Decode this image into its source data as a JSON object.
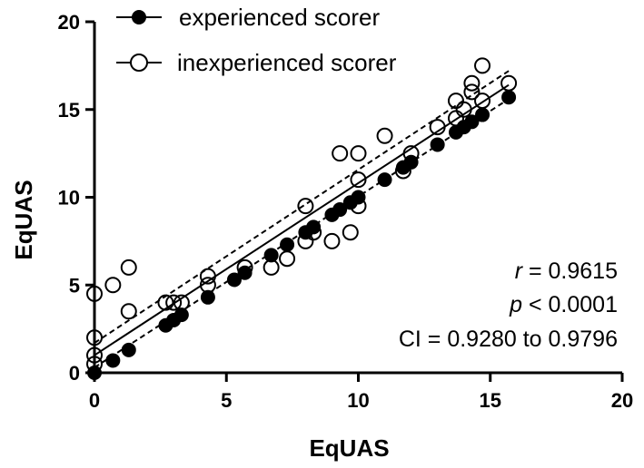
{
  "chart_data": {
    "type": "scatter",
    "xlabel": "EqUAS",
    "ylabel": "EqUAS",
    "xlim": [
      0,
      20
    ],
    "ylim": [
      0,
      20
    ],
    "xticks": [
      0,
      5,
      10,
      15,
      20
    ],
    "yticks": [
      0,
      5,
      10,
      15,
      20
    ],
    "grid": false,
    "legend_position": "top-left",
    "series": [
      {
        "name": "experienced scorer",
        "marker": "filled-circle",
        "color": "#000000",
        "points": [
          [
            0,
            0
          ],
          [
            0.7,
            0.7
          ],
          [
            1.3,
            1.3
          ],
          [
            2.7,
            2.7
          ],
          [
            3.0,
            3.0
          ],
          [
            3.3,
            3.3
          ],
          [
            4.3,
            4.3
          ],
          [
            5.3,
            5.3
          ],
          [
            5.7,
            5.7
          ],
          [
            6.7,
            6.7
          ],
          [
            7.3,
            7.3
          ],
          [
            8.0,
            8.0
          ],
          [
            8.3,
            8.3
          ],
          [
            9.0,
            9.0
          ],
          [
            9.3,
            9.3
          ],
          [
            9.7,
            9.7
          ],
          [
            10.0,
            10.0
          ],
          [
            11.0,
            11.0
          ],
          [
            11.7,
            11.7
          ],
          [
            12.0,
            12.0
          ],
          [
            13.0,
            13.0
          ],
          [
            13.7,
            13.7
          ],
          [
            14.0,
            14.0
          ],
          [
            14.3,
            14.3
          ],
          [
            14.7,
            14.7
          ],
          [
            15.7,
            15.7
          ]
        ]
      },
      {
        "name": "inexperienced scorer",
        "marker": "open-circle",
        "color": "#000000",
        "points": [
          [
            0,
            4.5
          ],
          [
            0,
            2.0
          ],
          [
            0,
            1.0
          ],
          [
            0,
            0.5
          ],
          [
            0.7,
            5.0
          ],
          [
            1.3,
            6.0
          ],
          [
            1.3,
            3.5
          ],
          [
            2.7,
            4.0
          ],
          [
            3.0,
            4.0
          ],
          [
            3.3,
            4.0
          ],
          [
            4.3,
            5.5
          ],
          [
            4.3,
            5.0
          ],
          [
            5.7,
            6.0
          ],
          [
            6.7,
            6.0
          ],
          [
            7.3,
            6.5
          ],
          [
            8.0,
            9.5
          ],
          [
            8.0,
            7.5
          ],
          [
            8.3,
            8.0
          ],
          [
            9.0,
            7.5
          ],
          [
            9.3,
            12.5
          ],
          [
            9.7,
            8.0
          ],
          [
            10.0,
            12.5
          ],
          [
            10.0,
            11.0
          ],
          [
            10.0,
            9.5
          ],
          [
            11.0,
            13.5
          ],
          [
            11.7,
            11.5
          ],
          [
            12.0,
            12.5
          ],
          [
            13.0,
            14.0
          ],
          [
            13.7,
            15.5
          ],
          [
            13.7,
            14.5
          ],
          [
            14.0,
            15.0
          ],
          [
            14.3,
            16.5
          ],
          [
            14.3,
            16.0
          ],
          [
            14.7,
            17.5
          ],
          [
            14.7,
            15.5
          ],
          [
            15.7,
            16.5
          ]
        ]
      }
    ],
    "regression": {
      "fit_line": {
        "x": [
          0,
          15.7
        ],
        "y": [
          1.0,
          16.4
        ]
      },
      "ci_upper": {
        "x": [
          0,
          15.7
        ],
        "y": [
          1.7,
          17.2
        ]
      },
      "ci_lower": {
        "x": [
          0,
          15.7
        ],
        "y": [
          0.3,
          15.6
        ]
      }
    },
    "annotations": [
      {
        "italic": "r",
        "rest": " = 0.9615"
      },
      {
        "italic": "p",
        "rest": " < 0.0001"
      },
      {
        "italic": "",
        "rest": "CI = 0.9280 to 0.9796"
      }
    ]
  }
}
